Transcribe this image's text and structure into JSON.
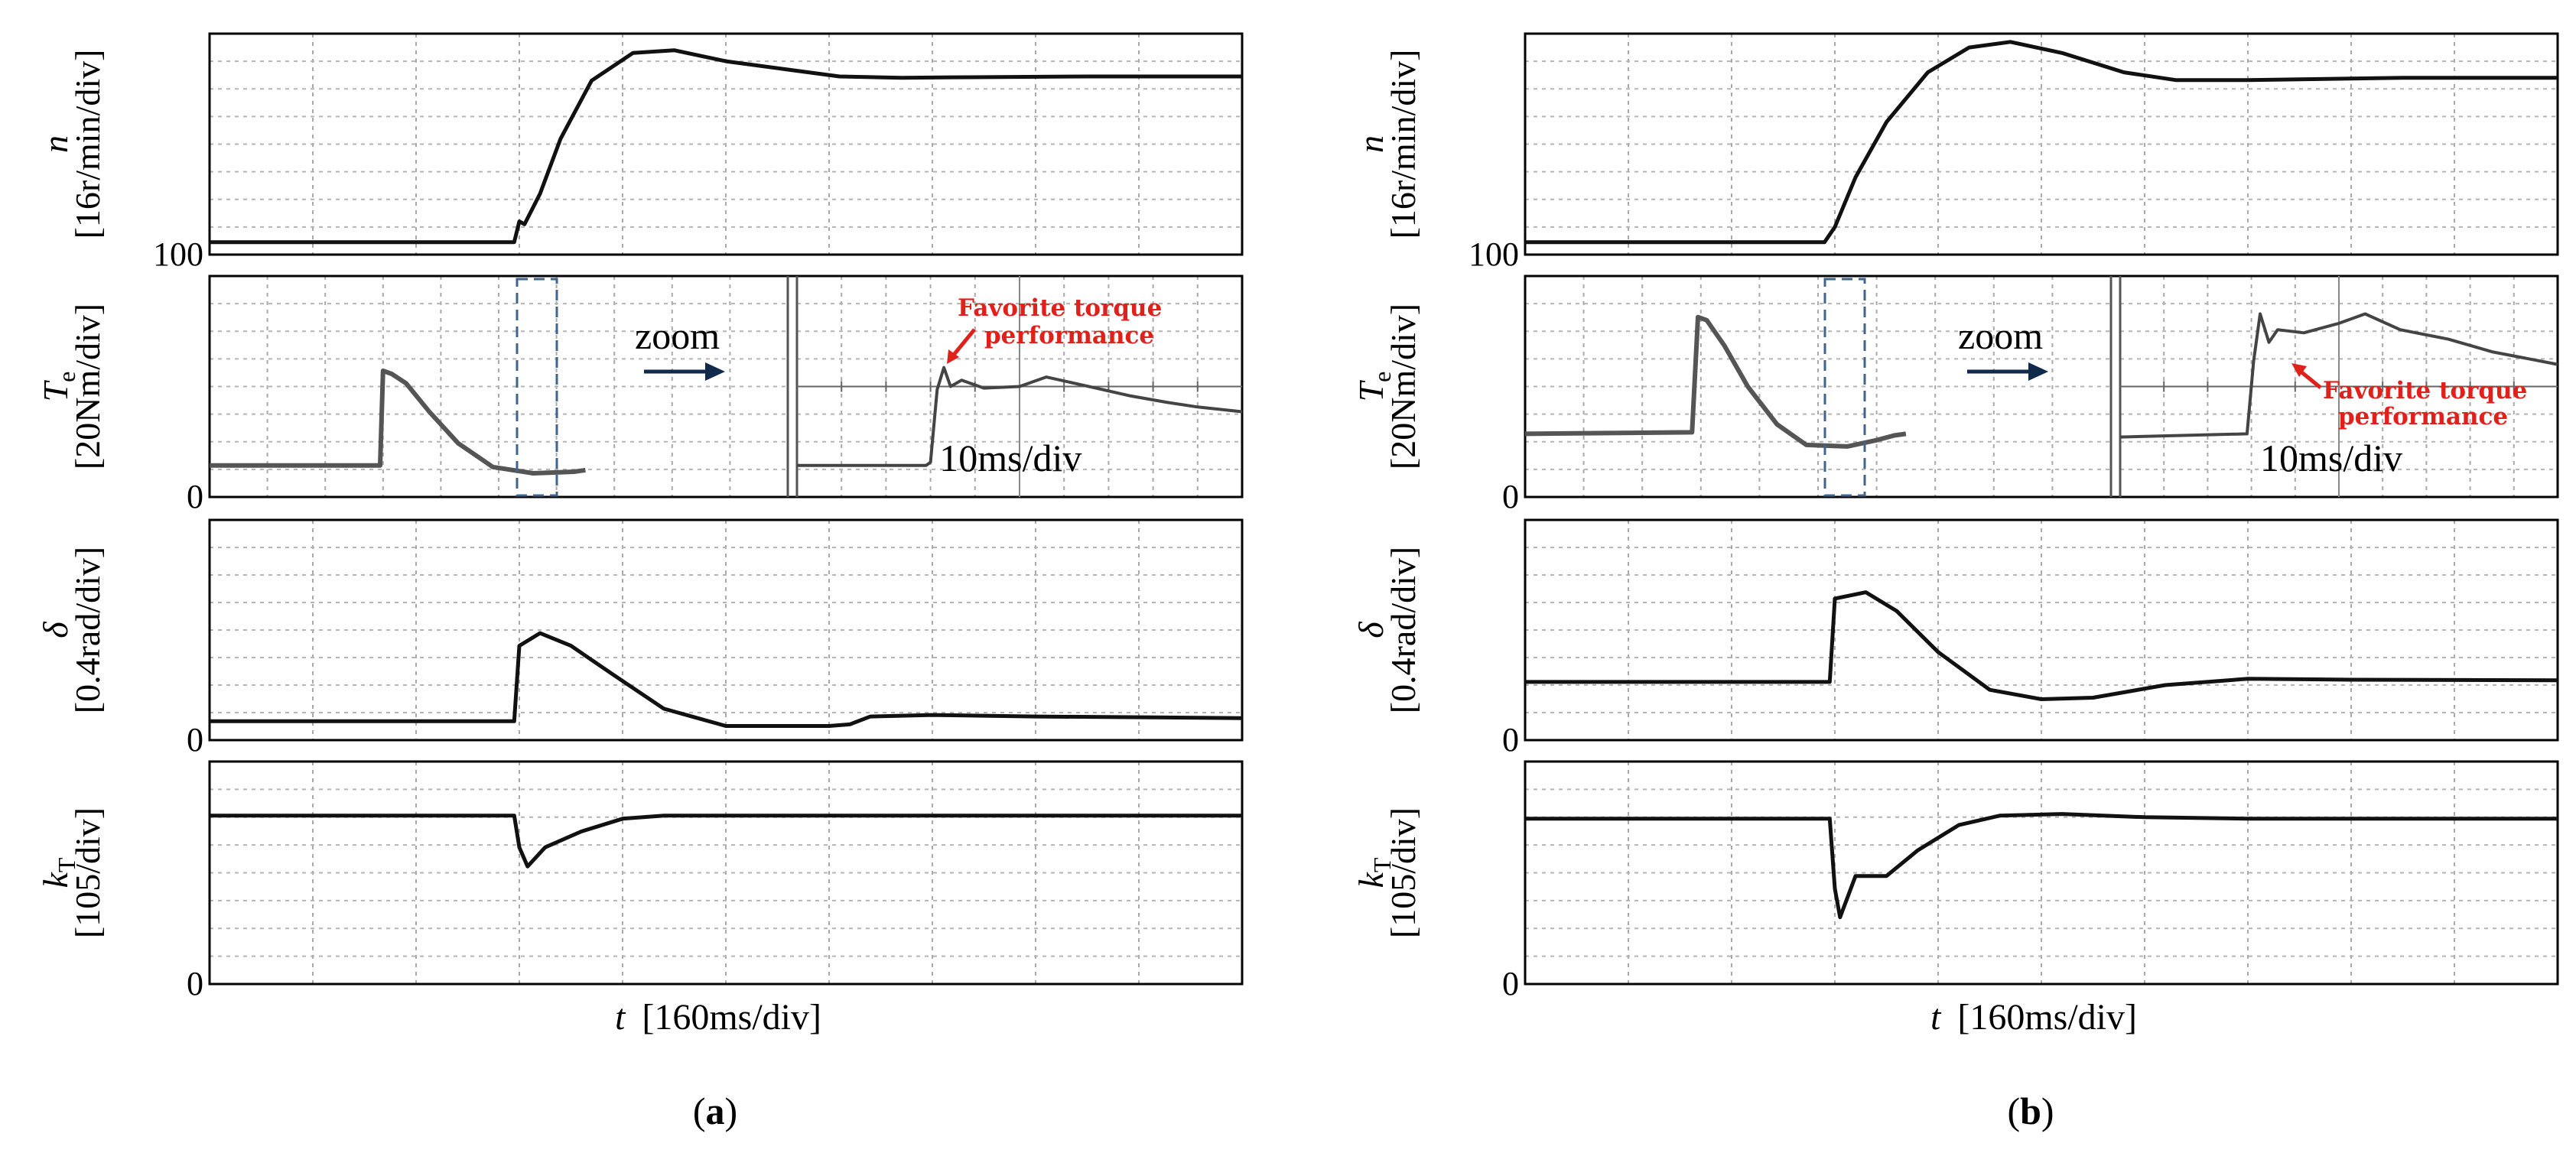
{
  "chart_data": [
    {
      "type": "line",
      "label": "(a)",
      "x_axis": {
        "symbol": "t",
        "unit": "[160ms/div]"
      },
      "panels": [
        {
          "id": "n",
          "symbol": "n",
          "unit": "[16r/min/div]",
          "tick_label": "100",
          "ylim": [
            0,
            8
          ],
          "series": [
            {
              "name": "n",
              "points": [
                [
                  0,
                  0.45
                ],
                [
                  2.95,
                  0.45
                ],
                [
                  3.0,
                  1.2
                ],
                [
                  3.05,
                  1.1
                ],
                [
                  3.2,
                  2.2
                ],
                [
                  3.4,
                  4.2
                ],
                [
                  3.7,
                  6.3
                ],
                [
                  4.1,
                  7.3
                ],
                [
                  4.5,
                  7.4
                ],
                [
                  5.0,
                  7.0
                ],
                [
                  5.6,
                  6.7
                ],
                [
                  6.1,
                  6.45
                ],
                [
                  6.7,
                  6.4
                ],
                [
                  7.2,
                  6.42
                ],
                [
                  8.5,
                  6.45
                ],
                [
                  10,
                  6.45
                ]
              ]
            }
          ]
        },
        {
          "id": "Te",
          "symbol": "T",
          "symbol_sub": "e",
          "unit": "[20Nm/div]",
          "tick_label": "0",
          "ylim": [
            0,
            7
          ],
          "note": "zoom",
          "inset_scale": "10ms/div",
          "series": [
            {
              "name": "Te",
              "points": [
                [
                  0,
                  1.0
                ],
                [
                  2.95,
                  1.0
                ],
                [
                  3.0,
                  4.0
                ],
                [
                  3.15,
                  3.9
                ],
                [
                  3.4,
                  3.6
                ],
                [
                  3.8,
                  2.7
                ],
                [
                  4.3,
                  1.7
                ],
                [
                  4.9,
                  0.95
                ],
                [
                  5.6,
                  0.75
                ],
                [
                  6.3,
                  0.8
                ],
                [
                  6.5,
                  0.85
                ]
              ]
            }
          ],
          "inset_series": [
            {
              "name": "Te zoom",
              "points": [
                [
                  0,
                  1.0
                ],
                [
                  2.9,
                  1.0
                ],
                [
                  3.0,
                  1.1
                ],
                [
                  3.15,
                  3.4
                ],
                [
                  3.3,
                  4.1
                ],
                [
                  3.45,
                  3.5
                ],
                [
                  3.7,
                  3.7
                ],
                [
                  4.2,
                  3.45
                ],
                [
                  5.0,
                  3.5
                ],
                [
                  5.6,
                  3.8
                ],
                [
                  6.4,
                  3.55
                ],
                [
                  7.5,
                  3.2
                ],
                [
                  8.3,
                  3.0
                ],
                [
                  9.0,
                  2.85
                ],
                [
                  10,
                  2.7
                ]
              ]
            }
          ],
          "annotation": "Favorite torque performance"
        },
        {
          "id": "delta",
          "symbol": "δ",
          "unit": "[0.4rad/div]",
          "tick_label": "0",
          "ylim": [
            0,
            7
          ],
          "series": [
            {
              "name": "delta",
              "points": [
                [
                  0,
                  0.6
                ],
                [
                  2.95,
                  0.6
                ],
                [
                  3.0,
                  3.0
                ],
                [
                  3.2,
                  3.4
                ],
                [
                  3.5,
                  3.0
                ],
                [
                  3.9,
                  2.1
                ],
                [
                  4.4,
                  1.0
                ],
                [
                  5.0,
                  0.45
                ],
                [
                  6.0,
                  0.45
                ],
                [
                  6.2,
                  0.5
                ],
                [
                  6.4,
                  0.75
                ],
                [
                  7.0,
                  0.8
                ],
                [
                  8.0,
                  0.75
                ],
                [
                  10,
                  0.7
                ]
              ]
            }
          ]
        },
        {
          "id": "kT",
          "symbol": "k",
          "symbol_sub": "T",
          "unit": "[105/div]",
          "tick_label": "0",
          "ylim": [
            0,
            7
          ],
          "series": [
            {
              "name": "kT",
              "points": [
                [
                  0,
                  5.3
                ],
                [
                  2.95,
                  5.3
                ],
                [
                  3.0,
                  4.3
                ],
                [
                  3.08,
                  3.7
                ],
                [
                  3.25,
                  4.3
                ],
                [
                  3.6,
                  4.8
                ],
                [
                  4.0,
                  5.2
                ],
                [
                  4.4,
                  5.3
                ],
                [
                  10,
                  5.3
                ]
              ]
            }
          ]
        }
      ]
    },
    {
      "type": "line",
      "label": "(b)",
      "x_axis": {
        "symbol": "t",
        "unit": "[160ms/div]"
      },
      "panels": [
        {
          "id": "n",
          "symbol": "n",
          "unit": "[16r/min/div]",
          "tick_label": "100",
          "ylim": [
            0,
            8
          ],
          "series": [
            {
              "name": "n",
              "points": [
                [
                  0,
                  0.45
                ],
                [
                  2.9,
                  0.45
                ],
                [
                  3.0,
                  1.0
                ],
                [
                  3.2,
                  2.8
                ],
                [
                  3.5,
                  4.8
                ],
                [
                  3.9,
                  6.6
                ],
                [
                  4.3,
                  7.5
                ],
                [
                  4.7,
                  7.7
                ],
                [
                  5.2,
                  7.3
                ],
                [
                  5.8,
                  6.6
                ],
                [
                  6.3,
                  6.32
                ],
                [
                  7.0,
                  6.32
                ],
                [
                  8.5,
                  6.4
                ],
                [
                  10,
                  6.4
                ]
              ]
            }
          ]
        },
        {
          "id": "Te",
          "symbol": "T",
          "symbol_sub": "e",
          "unit": "[20Nm/div]",
          "tick_label": "0",
          "ylim": [
            0,
            7
          ],
          "note": "zoom",
          "inset_scale": "10ms/div",
          "series": [
            {
              "name": "Te",
              "points": [
                [
                  0,
                  2.0
                ],
                [
                  2.85,
                  2.05
                ],
                [
                  2.95,
                  5.7
                ],
                [
                  3.1,
                  5.6
                ],
                [
                  3.4,
                  4.8
                ],
                [
                  3.8,
                  3.5
                ],
                [
                  4.3,
                  2.3
                ],
                [
                  4.8,
                  1.65
                ],
                [
                  5.5,
                  1.6
                ],
                [
                  6.0,
                  1.8
                ],
                [
                  6.3,
                  1.95
                ],
                [
                  6.5,
                  2.0
                ]
              ]
            }
          ],
          "inset_series": [
            {
              "name": "Te zoom",
              "points": [
                [
                  0,
                  1.9
                ],
                [
                  2.9,
                  2.0
                ],
                [
                  3.05,
                  4.3
                ],
                [
                  3.2,
                  5.8
                ],
                [
                  3.4,
                  4.9
                ],
                [
                  3.6,
                  5.3
                ],
                [
                  4.2,
                  5.2
                ],
                [
                  5.0,
                  5.5
                ],
                [
                  5.6,
                  5.8
                ],
                [
                  6.4,
                  5.3
                ],
                [
                  7.5,
                  5.0
                ],
                [
                  8.5,
                  4.6
                ],
                [
                  10,
                  4.2
                ]
              ]
            }
          ],
          "annotation": "Favorite torque performance"
        },
        {
          "id": "delta",
          "symbol": "δ",
          "unit": "[0.4rad/div]",
          "tick_label": "0",
          "ylim": [
            0,
            7
          ],
          "series": [
            {
              "name": "delta",
              "points": [
                [
                  0,
                  1.85
                ],
                [
                  2.95,
                  1.85
                ],
                [
                  3.0,
                  4.5
                ],
                [
                  3.3,
                  4.7
                ],
                [
                  3.6,
                  4.1
                ],
                [
                  4.0,
                  2.8
                ],
                [
                  4.5,
                  1.6
                ],
                [
                  5.0,
                  1.3
                ],
                [
                  5.5,
                  1.35
                ],
                [
                  6.2,
                  1.75
                ],
                [
                  7.0,
                  1.95
                ],
                [
                  8.0,
                  1.92
                ],
                [
                  10,
                  1.9
                ]
              ]
            }
          ]
        },
        {
          "id": "kT",
          "symbol": "k",
          "symbol_sub": "T",
          "unit": "[105/div]",
          "tick_label": "0",
          "ylim": [
            0,
            7
          ],
          "series": [
            {
              "name": "kT",
              "points": [
                [
                  0,
                  5.2
                ],
                [
                  2.95,
                  5.2
                ],
                [
                  3.0,
                  3.0
                ],
                [
                  3.05,
                  2.1
                ],
                [
                  3.2,
                  3.4
                ],
                [
                  3.5,
                  3.4
                ],
                [
                  3.8,
                  4.2
                ],
                [
                  4.2,
                  5.0
                ],
                [
                  4.6,
                  5.3
                ],
                [
                  5.2,
                  5.35
                ],
                [
                  6.0,
                  5.25
                ],
                [
                  7.0,
                  5.2
                ],
                [
                  10,
                  5.2
                ]
              ]
            }
          ]
        }
      ]
    }
  ]
}
